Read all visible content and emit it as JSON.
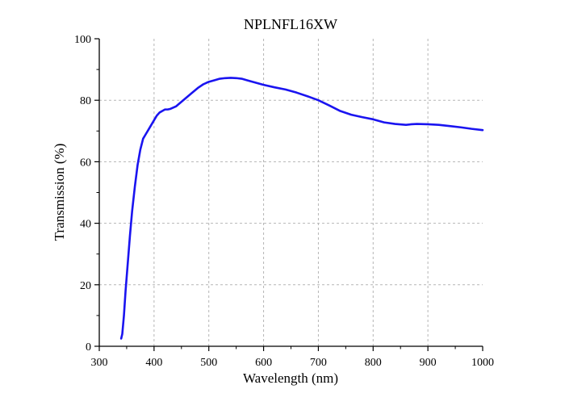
{
  "chart_data": {
    "type": "line",
    "title": "NPLNFL16XW",
    "xlabel": "Wavelength (nm)",
    "ylabel": "Transmission (%)",
    "xlim": [
      300,
      1000
    ],
    "ylim": [
      0,
      100
    ],
    "xticks": [
      300,
      400,
      500,
      600,
      700,
      800,
      900,
      1000
    ],
    "yticks": [
      0,
      20,
      40,
      60,
      80,
      100
    ],
    "grid": true,
    "legend": "none",
    "series": [
      {
        "color": "#1a14f0",
        "x": [
          340,
          342,
          345,
          348,
          352,
          356,
          360,
          365,
          370,
          375,
          380,
          385,
          390,
          395,
          400,
          405,
          410,
          415,
          420,
          425,
          430,
          440,
          450,
          460,
          470,
          480,
          490,
          500,
          510,
          520,
          530,
          540,
          550,
          560,
          570,
          580,
          590,
          600,
          620,
          640,
          660,
          680,
          700,
          720,
          740,
          760,
          780,
          800,
          820,
          840,
          860,
          870,
          880,
          900,
          920,
          940,
          960,
          980,
          1000
        ],
        "y": [
          2.5,
          4,
          10,
          18,
          27,
          36,
          44,
          52,
          59,
          64,
          67.5,
          69,
          70.5,
          72,
          73.5,
          75,
          76,
          76.5,
          77,
          77,
          77.2,
          78,
          79.5,
          81,
          82.5,
          84,
          85.2,
          86,
          86.5,
          87,
          87.2,
          87.3,
          87.2,
          87,
          86.5,
          86,
          85.5,
          85,
          84.2,
          83.5,
          82.5,
          81.3,
          80,
          78.3,
          76.5,
          75.3,
          74.5,
          73.8,
          72.8,
          72.3,
          72,
          72.2,
          72.3,
          72.2,
          72,
          71.6,
          71.2,
          70.7,
          70.3
        ]
      }
    ]
  }
}
